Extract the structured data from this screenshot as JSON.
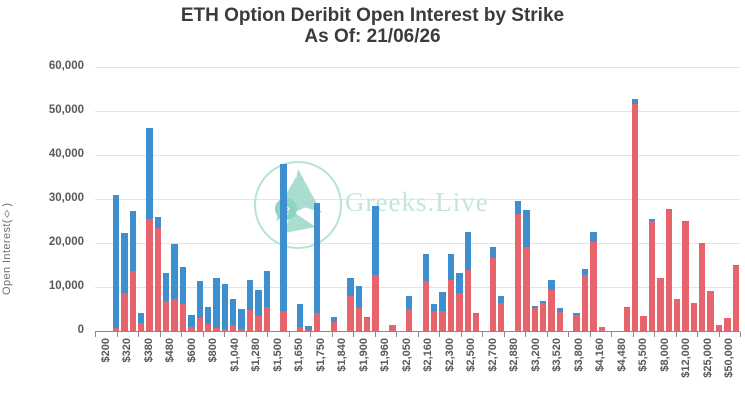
{
  "title": {
    "line1": "ETH Option Deribit Open Interest by Strike",
    "line2": "As Of: 21/06/26"
  },
  "y_axis": {
    "title": "Open Interest(◊)",
    "tick_labels": [
      "60,000",
      "50,000",
      "40,000",
      "30,000",
      "20,000",
      "10,000",
      "0"
    ]
  },
  "watermark": {
    "text": "Greeks.Live"
  },
  "colors": {
    "blue_segment": "#3e8fd0",
    "red_segment": "#e8646d",
    "gridline": "#dce6f1",
    "axis": "#8a8a8a",
    "axis_text": "#595959",
    "title_text": "#3b3b3b",
    "watermark": "#c2e6dc"
  },
  "chart_data": {
    "type": "bar",
    "stacked": true,
    "title": "ETH Option Deribit Open Interest by Strike As Of: 21/06/26",
    "ylabel": "Open Interest(◊)",
    "ylim": [
      0,
      60000
    ],
    "grid": true,
    "legend": "none",
    "x_labels": [
      "$200",
      "$320",
      "$380",
      "$480",
      "$600",
      "$800",
      "$1,040",
      "$1,280",
      "$1,500",
      "$1,650",
      "$1,750",
      "$1,840",
      "$1,900",
      "$1,960",
      "$2,050",
      "$2,160",
      "$2,300",
      "$2,500",
      "$2,700",
      "$2,880",
      "$3,200",
      "$3,520",
      "$3,800",
      "$4,160",
      "$4,480",
      "$5,500",
      "$8,000",
      "$12,000",
      "$25,000",
      "$50,000"
    ],
    "series_note": "each bar = [red_bottom_value, blue_top_value] in contracts; bars run left-to-right across all strikes",
    "bars": [
      [
        0,
        0
      ],
      [
        0,
        0
      ],
      [
        700,
        30300
      ],
      [
        8700,
        13600
      ],
      [
        13700,
        13600
      ],
      [
        1800,
        2200
      ],
      [
        25400,
        20800
      ],
      [
        23300,
        2500
      ],
      [
        6800,
        6400
      ],
      [
        7300,
        12500
      ],
      [
        6200,
        8300
      ],
      [
        1000,
        2600
      ],
      [
        2900,
        8500
      ],
      [
        1700,
        3800
      ],
      [
        600,
        11400
      ],
      [
        500,
        10200
      ],
      [
        1400,
        5800
      ],
      [
        400,
        4500
      ],
      [
        4800,
        6900
      ],
      [
        3300,
        6100
      ],
      [
        5400,
        8200
      ],
      [
        0,
        0
      ],
      [
        4500,
        33500
      ],
      [
        0,
        0
      ],
      [
        900,
        5200
      ],
      [
        300,
        900
      ],
      [
        4200,
        25000
      ],
      [
        0,
        0
      ],
      [
        2100,
        1200
      ],
      [
        0,
        0
      ],
      [
        8000,
        4000
      ],
      [
        5200,
        5000
      ],
      [
        2900,
        300
      ],
      [
        12700,
        15700
      ],
      [
        0,
        0
      ],
      [
        1400,
        0
      ],
      [
        0,
        0
      ],
      [
        5000,
        3000
      ],
      [
        0,
        0
      ],
      [
        11400,
        6000
      ],
      [
        4500,
        1700
      ],
      [
        4600,
        4300
      ],
      [
        11700,
        5800
      ],
      [
        8700,
        4500
      ],
      [
        13800,
        8700
      ],
      [
        3800,
        200
      ],
      [
        0,
        0
      ],
      [
        16500,
        2500
      ],
      [
        6400,
        1600
      ],
      [
        0,
        0
      ],
      [
        26700,
        2800
      ],
      [
        19200,
        8400
      ],
      [
        5300,
        500
      ],
      [
        6300,
        600
      ],
      [
        9300,
        2300
      ],
      [
        4400,
        800
      ],
      [
        0,
        0
      ],
      [
        3600,
        600
      ],
      [
        12800,
        1400
      ],
      [
        20300,
        2300
      ],
      [
        1000,
        0
      ],
      [
        0,
        0
      ],
      [
        0,
        0
      ],
      [
        5200,
        300
      ],
      [
        51700,
        1000
      ],
      [
        3400,
        0
      ],
      [
        24900,
        500
      ],
      [
        12000,
        0
      ],
      [
        27600,
        100
      ],
      [
        7200,
        0
      ],
      [
        24800,
        200
      ],
      [
        6400,
        0
      ],
      [
        20000,
        0
      ],
      [
        9100,
        0
      ],
      [
        1300,
        0
      ],
      [
        2900,
        0
      ],
      [
        14800,
        200
      ]
    ]
  }
}
